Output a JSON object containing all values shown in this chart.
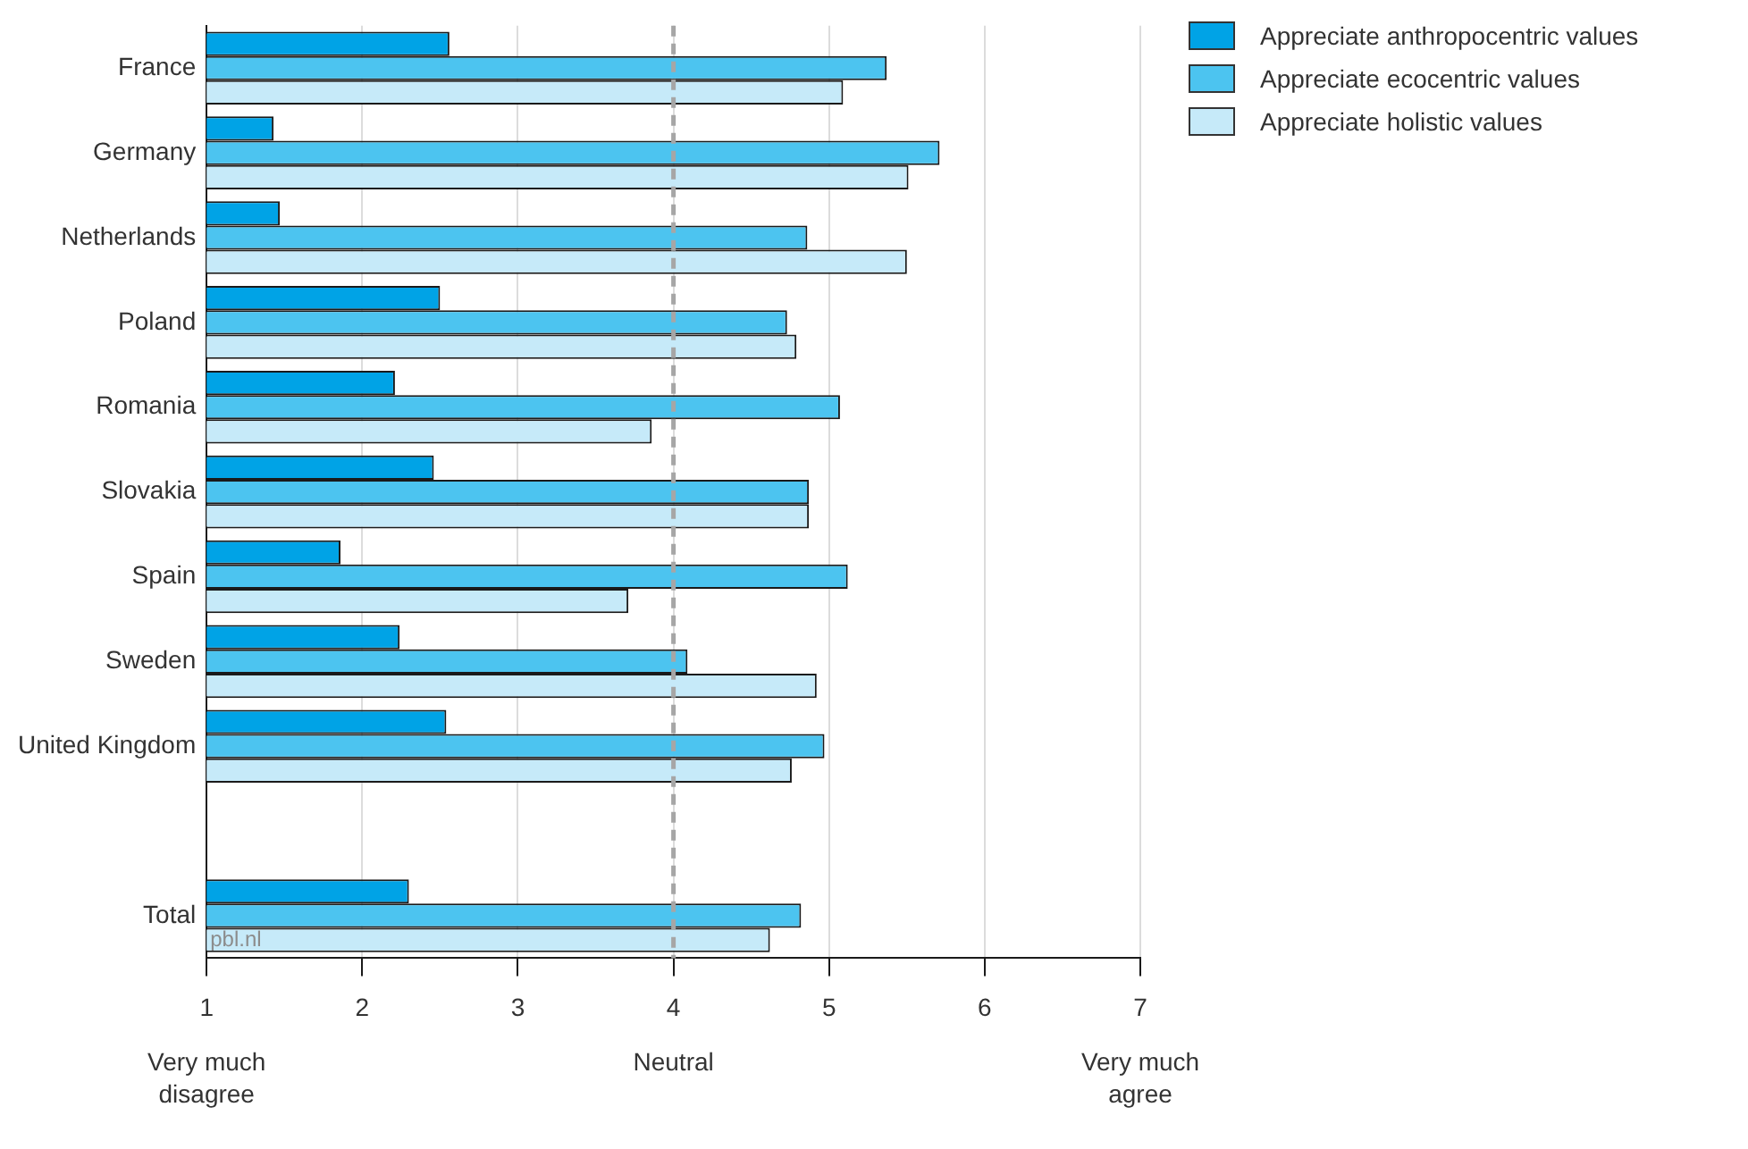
{
  "chart_data": {
    "type": "bar",
    "orientation": "horizontal",
    "categories": [
      "France",
      "Germany",
      "Netherlands",
      "Poland",
      "Romania",
      "Slovakia",
      "Spain",
      "Sweden",
      "United Kingdom",
      null,
      "Total"
    ],
    "series": [
      {
        "name": "Appreciate anthropocentric values",
        "color": "#00a3e6",
        "values": [
          2.56,
          1.43,
          1.47,
          2.5,
          2.21,
          2.46,
          1.86,
          2.24,
          2.54,
          null,
          2.3
        ]
      },
      {
        "name": "Appreciate ecocentric values",
        "color": "#4cc4f0",
        "values": [
          5.37,
          5.71,
          4.86,
          4.73,
          5.07,
          4.87,
          5.12,
          4.09,
          4.97,
          null,
          4.82
        ]
      },
      {
        "name": "Appreciate holistic values",
        "color": "#c6eaf9",
        "values": [
          5.09,
          5.51,
          5.5,
          4.79,
          3.86,
          4.87,
          3.71,
          4.92,
          4.76,
          null,
          4.62
        ]
      }
    ],
    "xlim": [
      1,
      7
    ],
    "xticks": [
      1,
      2,
      3,
      4,
      5,
      6,
      7
    ],
    "grid": "x",
    "legend": "top right",
    "ref_lines": [
      {
        "axis": "x",
        "value": 4,
        "color": "#a6a6a6",
        "line_style": "dashed"
      }
    ],
    "annotations": [
      "pbl.nl",
      "Very much disagree",
      "Neutral",
      "Very much agree"
    ]
  }
}
